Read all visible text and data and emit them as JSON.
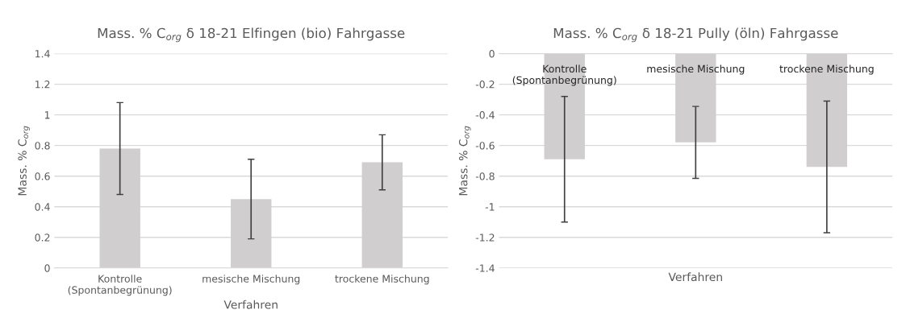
{
  "chart_data": [
    {
      "type": "bar",
      "title": "Mass. % C$_{org}$ δ 18-21 Elfingen (bio) Fahrgasse",
      "xlabel": "Verfahren",
      "ylabel": "Mass. % C$_{org}$",
      "categories": [
        "Kontrolle\n(Spontanbegrünung)",
        "mesische Mischung",
        "trockene Mischung"
      ],
      "series": [
        {
          "color": "#d0cece",
          "values": [
            0.78,
            0.45,
            0.69
          ],
          "errors": [
            0.3,
            0.26,
            0.18
          ]
        }
      ],
      "ylim": [
        0,
        1.4
      ],
      "yticks": [
        0,
        0.2,
        0.4,
        0.6,
        0.8,
        1,
        1.2,
        1.4
      ],
      "grid": "y",
      "legend": false
    },
    {
      "type": "bar",
      "title": "Mass. % C$_{org}$ δ 18-21 Pully (öln) Fahrgasse",
      "xlabel": "Verfahren",
      "ylabel": "Mass. % C$_{org}$",
      "categories": [
        "Kontrolle\n(Spontanbegrünung)",
        "mesische Mischung",
        "trockene Mischung"
      ],
      "series": [
        {
          "color": "#d0cece",
          "values": [
            -0.69,
            -0.58,
            -0.74
          ],
          "errors": [
            0.41,
            0.235,
            0.43
          ]
        }
      ],
      "ylim": [
        -1.4,
        0
      ],
      "yticks": [
        -1.4,
        -1.2,
        -1,
        -0.8,
        -0.6,
        -0.4,
        -0.2,
        0
      ],
      "grid": "y",
      "legend": false
    }
  ]
}
